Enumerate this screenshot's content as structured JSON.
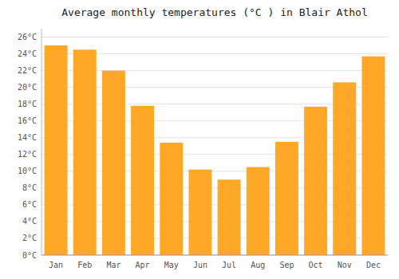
{
  "chart_data": {
    "type": "bar",
    "title": "Average monthly temperatures (°C ) in Blair Athol",
    "categories": [
      "Jan",
      "Feb",
      "Mar",
      "Apr",
      "May",
      "Jun",
      "Jul",
      "Aug",
      "Sep",
      "Oct",
      "Nov",
      "Dec"
    ],
    "values": [
      25.0,
      24.5,
      22.0,
      17.8,
      13.4,
      10.2,
      9.0,
      10.5,
      13.5,
      17.7,
      20.6,
      23.7
    ],
    "color": "#FFA726",
    "ylim": [
      0,
      27
    ],
    "yticks": [
      {
        "value": 0,
        "label": "0°C"
      },
      {
        "value": 2,
        "label": "2°C"
      },
      {
        "value": 4,
        "label": "4°C"
      },
      {
        "value": 6,
        "label": "6°C"
      },
      {
        "value": 8,
        "label": "8°C"
      },
      {
        "value": 10,
        "label": "10°C"
      },
      {
        "value": 12,
        "label": "12°C"
      },
      {
        "value": 14,
        "label": "14°C"
      },
      {
        "value": 16,
        "label": "16°C"
      },
      {
        "value": 18,
        "label": "18°C"
      },
      {
        "value": 20,
        "label": "20°C"
      },
      {
        "value": 22,
        "label": "22°C"
      },
      {
        "value": 24,
        "label": "24°C"
      },
      {
        "value": 26,
        "label": "26°C"
      }
    ],
    "grid": true
  }
}
